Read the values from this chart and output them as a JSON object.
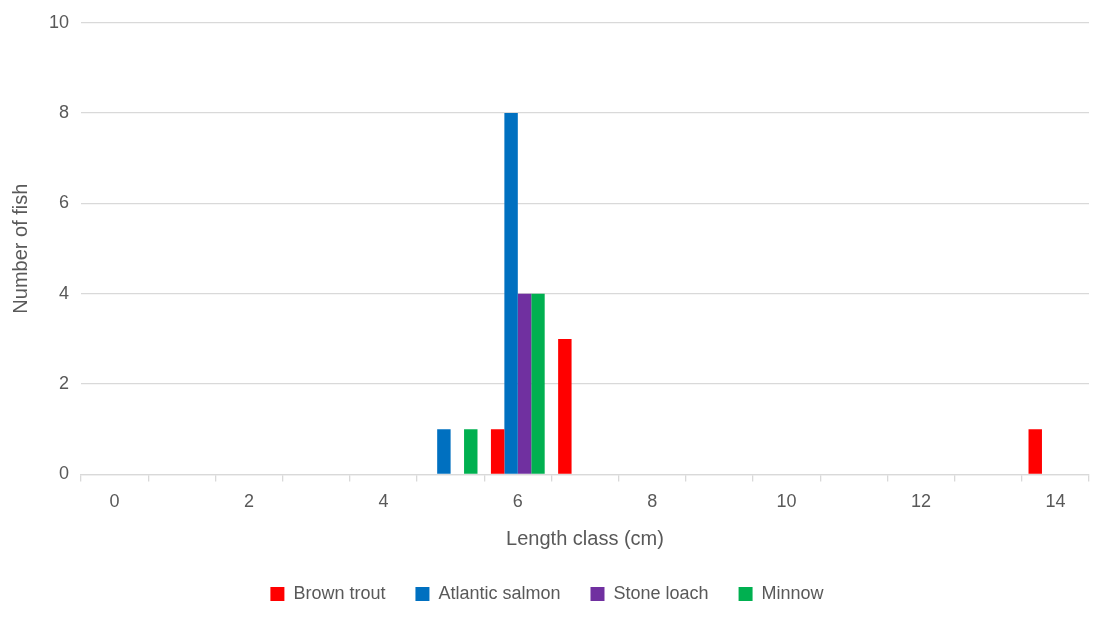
{
  "chart_data": {
    "type": "bar",
    "xlabel": "Length class (cm)",
    "ylabel": "Number of fish",
    "categories": [
      "0",
      null,
      "2",
      null,
      "4",
      null,
      "6",
      null,
      "8",
      null,
      "10",
      null,
      "12",
      null,
      "14"
    ],
    "series": [
      {
        "name": "Brown trout",
        "color": "#ff0000",
        "values": [
          0,
          0,
          0,
          0,
          0,
          0,
          1,
          3,
          0,
          0,
          0,
          0,
          0,
          0,
          1
        ]
      },
      {
        "name": "Atlantic salmon",
        "color": "#0070c0",
        "values": [
          0,
          0,
          0,
          0,
          0,
          1,
          8,
          0,
          0,
          0,
          0,
          0,
          0,
          0,
          0
        ]
      },
      {
        "name": "Stone loach",
        "color": "#7030a0",
        "values": [
          0,
          0,
          0,
          0,
          0,
          0,
          4,
          0,
          0,
          0,
          0,
          0,
          0,
          0,
          0
        ]
      },
      {
        "name": "Minnow",
        "color": "#00b050",
        "values": [
          0,
          0,
          0,
          0,
          0,
          1,
          4,
          0,
          0,
          0,
          0,
          0,
          0,
          0,
          0
        ]
      }
    ],
    "ylim": [
      0,
      10
    ],
    "yticks": [
      0,
      2,
      4,
      6,
      8,
      10
    ],
    "grid": "y",
    "legend": "bottom"
  }
}
